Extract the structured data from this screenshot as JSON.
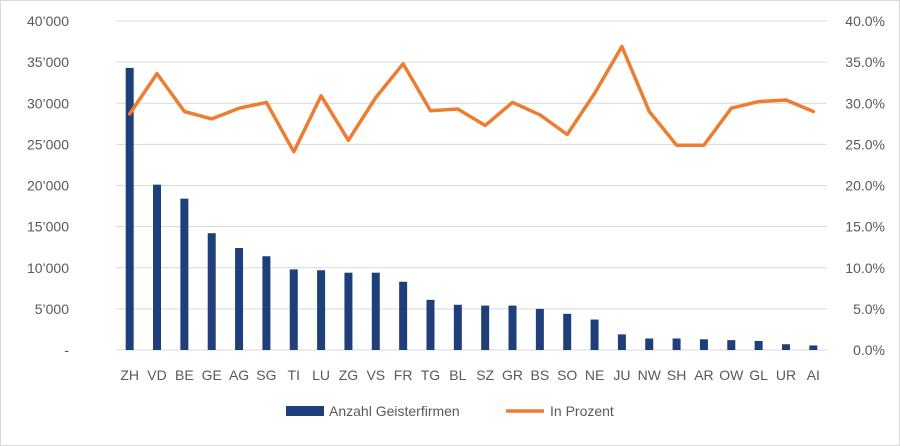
{
  "chart_data": {
    "type": "bar",
    "title": "",
    "xlabel": "",
    "ylabel": "",
    "categories": [
      "ZH",
      "VD",
      "BE",
      "GE",
      "AG",
      "SG",
      "TI",
      "LU",
      "ZG",
      "VS",
      "FR",
      "TG",
      "BL",
      "SZ",
      "GR",
      "BS",
      "SO",
      "NE",
      "JU",
      "NW",
      "SH",
      "AR",
      "OW",
      "GL",
      "UR",
      "AI"
    ],
    "series": [
      {
        "name": "Anzahl Geisterfirmen",
        "type": "bar",
        "axis": "left",
        "color": "#1f3f7a",
        "values": [
          34300,
          20100,
          18400,
          14200,
          12400,
          11400,
          9800,
          9700,
          9400,
          9400,
          8300,
          6100,
          5500,
          5400,
          5400,
          5000,
          4400,
          3700,
          1900,
          1400,
          1400,
          1300,
          1200,
          1100,
          700,
          550
        ]
      },
      {
        "name": "In Prozent",
        "type": "line",
        "axis": "right",
        "color": "#ed7d31",
        "values": [
          28.7,
          33.6,
          29.0,
          28.1,
          29.4,
          30.1,
          24.1,
          30.9,
          25.5,
          30.7,
          34.8,
          29.1,
          29.3,
          27.3,
          30.1,
          28.6,
          26.2,
          31.2,
          36.9,
          29.0,
          24.9,
          24.9,
          29.4,
          30.2,
          30.4,
          29.0
        ]
      }
    ],
    "ylim": [
      0,
      40000
    ],
    "y2lim": [
      0,
      40
    ],
    "yticks": [
      "-",
      "5’000",
      "10’000",
      "15’000",
      "20’000",
      "25’000",
      "30’000",
      "35’000",
      "40’000"
    ],
    "y2ticks": [
      "0.0%",
      "5.0%",
      "10.0%",
      "15.0%",
      "20.0%",
      "25.0%",
      "30.0%",
      "35.0%",
      "40.0%"
    ],
    "grid": true,
    "legend_position": "bottom"
  }
}
